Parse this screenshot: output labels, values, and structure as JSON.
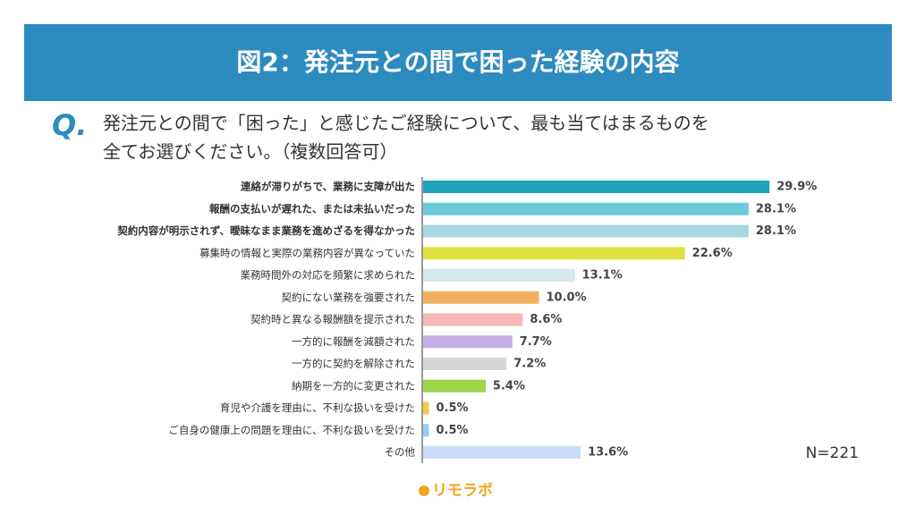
{
  "chart_data": {
    "type": "bar",
    "orientation": "horizontal",
    "title": "図2：発注元との間で困った経験の内容",
    "question_mark": "Q.",
    "question": [
      "発注元との間で「困った」と感じたご経験について、最も当てはまるものを",
      "全てお選びください。（複数回答可）"
    ],
    "categories": [
      "連絡が滞りがちで、業務に支障が出た",
      "報酬の支払いが遅れた、または未払いだった",
      "契約内容が明示されず、曖昧なまま業務を進めざるを得なかった",
      "募集時の情報と実際の業務内容が異なっていた",
      "業務時間外の対応を頻繁に求められた",
      "契約にない業務を強要された",
      "契約時と異なる報酬額を提示された",
      "一方的に報酬を減額された",
      "一方的に契約を解除された",
      "納期を一方的に変更された",
      "育児や介護を理由に、不利な扱いを受けた",
      "ご自身の健康上の問題を理由に、不利な扱いを受けた",
      "その他"
    ],
    "values": [
      29.9,
      28.1,
      28.1,
      22.6,
      13.1,
      10.0,
      8.6,
      7.7,
      7.2,
      5.4,
      0.5,
      0.5,
      13.6
    ],
    "value_labels": [
      "29.9%",
      "28.1%",
      "28.1%",
      "22.6%",
      "13.1%",
      "10.0%",
      "8.6%",
      "7.7%",
      "7.2%",
      "5.4%",
      "0.5%",
      "0.5%",
      "13.6%"
    ],
    "colors": [
      "#1fa3b8",
      "#6fc9dc",
      "#a8d8df",
      "#dfe03e",
      "#d6e9ec",
      "#f2b05e",
      "#f9b7b5",
      "#c4aee3",
      "#d6d6d6",
      "#9ad54a",
      "#f3c94a",
      "#8fd1f2",
      "#c8dcf7"
    ],
    "note": "N=221"
  },
  "logo": "リモラボ"
}
